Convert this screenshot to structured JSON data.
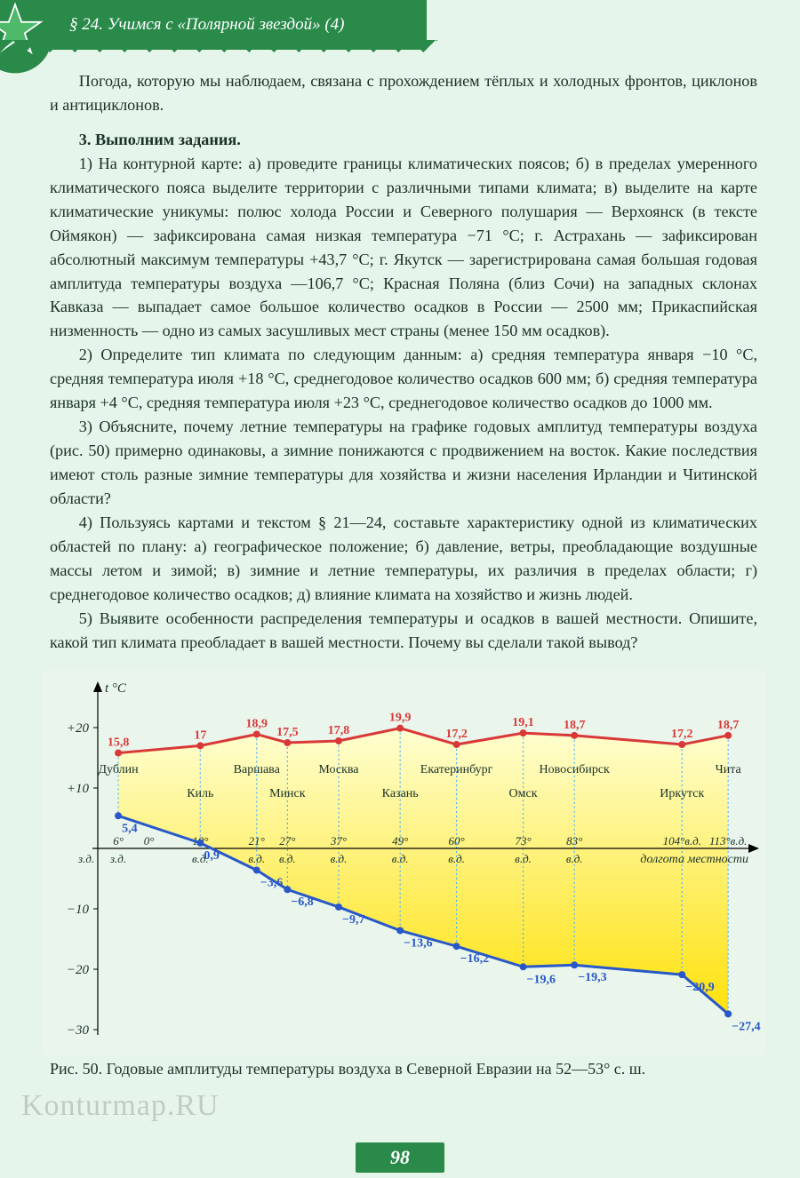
{
  "header": {
    "title": "§ 24. Учимся с «Полярной звездой» (4)"
  },
  "paragraphs": {
    "intro": "Погода, которую мы наблюдаем, связана с прохождением тёплых и холодных фронтов, циклонов и антициклонов.",
    "task_head": "3. Выполним задания.",
    "t1": "1) На контурной карте: а) проведите границы климатических поясов; б) в пределах умеренного климатического пояса выделите территории с различными типами климата; в) выделите на карте климатические уникумы: полюс холода России и Северного полушария — Верхоянск (в тексте Оймякон) — зафиксирована самая низкая температура −71 °С; г. Астрахань — зафиксирован абсолютный максимум температуры +43,7 °С; г. Якутск — зарегистрирована самая большая годовая амплитуда температуры воздуха —106,7 °С; Красная Поляна (близ Сочи) на западных склонах Кавказа — выпадает самое большое количество осадков в России — 2500 мм; Прикаспийская низменность — одно из самых засушливых мест страны (менее 150 мм осадков).",
    "t2": "2) Определите тип климата по следующим данным: а) средняя температура января −10 °С, средняя температура июля +18 °С, среднегодовое количество осадков 600 мм; б) средняя температура января +4 °С, средняя температура июля +23 °С, среднегодовое количество осадков до 1000 мм.",
    "t3": "3) Объясните, почему летние температуры на графике годовых амплитуд температуры воздуха (рис. 50) примерно одинаковы, а зимние понижаются с продвижением на восток. Какие последствия имеют столь разные зимние температуры для хозяйства и жизни населения Ирландии и Читинской области?",
    "t4": "4) Пользуясь картами и текстом § 21—24, составьте характеристику одной из климатических областей по плану: а) географическое положение; б) давление, ветры, преобладающие воздушные массы летом и зимой; в) зимние и летние температуры, их различия в пределах области; г) среднегодовое количество осадков; д) влияние климата на хозяйство и жизнь людей.",
    "t5": "5) Выявите особенности распределения температуры и осадков в вашей местности. Опишите, какой тип климата преобладает в вашей местности. Почему вы сделали такой вывод?"
  },
  "chart": {
    "type": "line",
    "y_axis_label": "t °С",
    "ylim": [
      -30,
      25
    ],
    "yticks": [
      -30,
      -20,
      -10,
      0,
      10,
      20
    ],
    "ytick_labels": [
      "−30",
      "−20",
      "−10",
      "0",
      "+10",
      "+20"
    ],
    "x_axis_label_1": "долгота местности",
    "x_left_label": "з.д.",
    "x_longitude_marks": [
      {
        "lon": -6,
        "label": "6°",
        "sub": "з.д."
      },
      {
        "lon": 0,
        "label": "0°",
        "sub": ""
      },
      {
        "lon": 10,
        "label": "10°",
        "sub": "в.д."
      },
      {
        "lon": 21,
        "label": "21°",
        "sub": "в.д."
      },
      {
        "lon": 27,
        "label": "27°",
        "sub": "в.д."
      },
      {
        "lon": 37,
        "label": "37°",
        "sub": "в.д."
      },
      {
        "lon": 49,
        "label": "49°",
        "sub": "в.д."
      },
      {
        "lon": 60,
        "label": "60°",
        "sub": "в.д."
      },
      {
        "lon": 73,
        "label": "73°",
        "sub": "в.д."
      },
      {
        "lon": 83,
        "label": "83°",
        "sub": "в.д."
      },
      {
        "lon": 104,
        "label": "104°в.д.",
        "sub": ""
      },
      {
        "lon": 113,
        "label": "113°в.д.",
        "sub": ""
      }
    ],
    "cities": [
      {
        "lon": -6,
        "name": "Дублин",
        "summer": 15.8,
        "winter": 5.4
      },
      {
        "lon": 10,
        "name": "Киль",
        "summer": 17.0,
        "winter": 0.9
      },
      {
        "lon": 21,
        "name": "Варшава",
        "summer": 18.9,
        "winter": -3.6
      },
      {
        "lon": 27,
        "name": "Минск",
        "summer": 17.5,
        "winter": -6.8
      },
      {
        "lon": 37,
        "name": "Москва",
        "summer": 17.8,
        "winter": -9.7
      },
      {
        "lon": 49,
        "name": "Казань",
        "summer": 19.9,
        "winter": -13.6
      },
      {
        "lon": 60,
        "name": "Екатеринбург",
        "summer": 17.2,
        "winter": -16.2
      },
      {
        "lon": 73,
        "name": "Омск",
        "summer": 19.1,
        "winter": -19.6
      },
      {
        "lon": 83,
        "name": "Новосибирск",
        "summer": 18.7,
        "winter": -19.3
      },
      {
        "lon": 104,
        "name": "Иркутск",
        "summer": 17.2,
        "winter": -20.9
      },
      {
        "lon": 113,
        "name": "Чита",
        "summer": 18.7,
        "winter": -27.4
      }
    ],
    "colors": {
      "summer_line": "#d93838",
      "winter_line": "#2858c8",
      "fill_top": "#ffffd0",
      "fill_bottom": "#ffe000",
      "drop_line": "#4fb3ff",
      "axis": "#000000",
      "zero_line": "#000000",
      "bg": "#eaf6ec",
      "text": "#1a3028"
    },
    "line_width": 3,
    "marker_radius": 4,
    "label_fontsize": 14,
    "value_fontsize": 14,
    "axis_fontsize": 15
  },
  "caption": "Рис. 50. Годовые амплитуды температуры воздуха в Северной Евразии на 52—53° с. ш.",
  "watermark": "Konturmap.RU",
  "page_number": "98"
}
